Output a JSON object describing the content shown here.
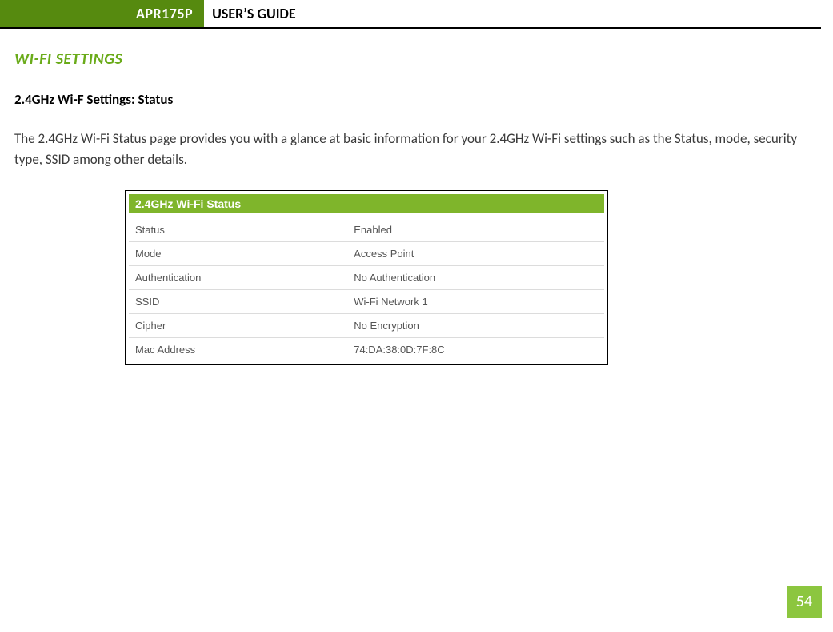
{
  "header": {
    "badge": "APR175P",
    "title": "USER’S GUIDE"
  },
  "section": {
    "heading": "WI-FI SETTINGS",
    "subheading": "2.4GHz Wi-F Settings: Status",
    "body": "The 2.4GHz Wi-Fi Status page provides you with a glance at basic information for your 2.4GHz Wi-Fi settings such as the Status, mode, security type, SSID among other details."
  },
  "panel": {
    "title": "2.4GHz Wi-Fi Status",
    "header_bg": "#7fb52b",
    "header_color": "#ffffff",
    "border_color": "#dcdcdc",
    "rows": [
      {
        "label": "Status",
        "value": "Enabled"
      },
      {
        "label": "Mode",
        "value": "Access Point"
      },
      {
        "label": "Authentication",
        "value": "No Authentication"
      },
      {
        "label": "SSID",
        "value": "Wi-Fi Network 1"
      },
      {
        "label": "Cipher",
        "value": "No Encryption"
      },
      {
        "label": "Mac Address",
        "value": "74:DA:38:0D:7F:8C"
      }
    ]
  },
  "page_number": "54",
  "colors": {
    "brand_green_dark": "#568a0f",
    "brand_green_light": "#8cc63f",
    "heading_green": "#6aab1a"
  }
}
